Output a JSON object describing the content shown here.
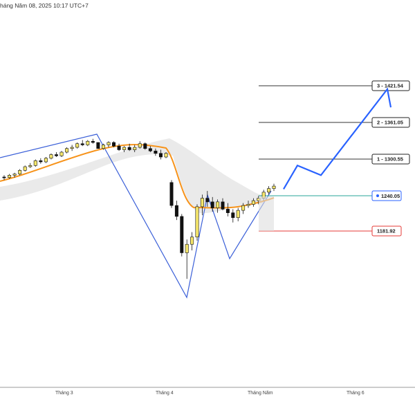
{
  "header": {
    "date_text": "háng Năm 08, 2025 10:17 UTC+7"
  },
  "colors": {
    "target_line": "#333333",
    "entry_line": "#26a69a",
    "stop_line": "#e53935",
    "zigzag": "#3a5fd8",
    "projection": "#2962ff",
    "ma": "#f7931a",
    "candle_up": "#f5e66b",
    "candle_down": "#111111",
    "band_fill": "#e6e6e6"
  },
  "chart_data": {
    "type": "candlestick",
    "x_axis": {
      "ticks": [
        "Tháng 3",
        "Tháng 4",
        "Tháng Năm",
        "Tháng 6"
      ]
    },
    "y_range": [
      1050,
      1445
    ],
    "levels": [
      {
        "label": "3 - 1421.54",
        "value": 1421.54,
        "kind": "target"
      },
      {
        "label": "2 - 1361.05",
        "value": 1361.05,
        "kind": "target"
      },
      {
        "label": "1 - 1300.55",
        "value": 1300.55,
        "kind": "target"
      },
      {
        "label": "1240.05",
        "value": 1240.05,
        "kind": "entry"
      },
      {
        "label": "1181.92",
        "value": 1181.92,
        "kind": "stop"
      }
    ],
    "candles": [
      [
        1271,
        1274,
        1266,
        1270
      ],
      [
        1270,
        1276,
        1268,
        1274
      ],
      [
        1274,
        1278,
        1270,
        1276
      ],
      [
        1276,
        1284,
        1274,
        1282
      ],
      [
        1282,
        1290,
        1280,
        1288
      ],
      [
        1288,
        1294,
        1286,
        1290
      ],
      [
        1290,
        1300,
        1288,
        1298
      ],
      [
        1298,
        1302,
        1293,
        1296
      ],
      [
        1296,
        1304,
        1294,
        1302
      ],
      [
        1302,
        1310,
        1300,
        1308
      ],
      [
        1308,
        1312,
        1304,
        1306
      ],
      [
        1306,
        1314,
        1304,
        1312
      ],
      [
        1312,
        1320,
        1310,
        1318
      ],
      [
        1318,
        1324,
        1314,
        1320
      ],
      [
        1320,
        1328,
        1318,
        1326
      ],
      [
        1326,
        1332,
        1322,
        1324
      ],
      [
        1324,
        1332,
        1322,
        1330
      ],
      [
        1330,
        1334,
        1326,
        1328
      ],
      [
        1328,
        1326,
        1318,
        1318
      ],
      [
        1318,
        1326,
        1316,
        1324
      ],
      [
        1324,
        1330,
        1320,
        1328
      ],
      [
        1328,
        1330,
        1320,
        1322
      ],
      [
        1322,
        1326,
        1314,
        1316
      ],
      [
        1316,
        1322,
        1312,
        1320
      ],
      [
        1320,
        1326,
        1314,
        1316
      ],
      [
        1316,
        1324,
        1312,
        1320
      ],
      [
        1320,
        1330,
        1318,
        1326
      ],
      [
        1326,
        1328,
        1316,
        1318
      ],
      [
        1318,
        1322,
        1312,
        1314
      ],
      [
        1314,
        1318,
        1306,
        1310
      ],
      [
        1310,
        1316,
        1300,
        1304
      ],
      [
        1304,
        1312,
        1302,
        1310
      ],
      [
        1262,
        1266,
        1220,
        1224
      ],
      [
        1224,
        1232,
        1200,
        1206
      ],
      [
        1206,
        1210,
        1140,
        1146
      ],
      [
        1146,
        1168,
        1103,
        1160
      ],
      [
        1160,
        1180,
        1150,
        1172
      ],
      [
        1172,
        1226,
        1166,
        1222
      ],
      [
        1222,
        1242,
        1208,
        1236
      ],
      [
        1236,
        1248,
        1222,
        1230
      ],
      [
        1230,
        1238,
        1214,
        1220
      ],
      [
        1220,
        1234,
        1212,
        1230
      ],
      [
        1230,
        1236,
        1216,
        1218
      ],
      [
        1218,
        1228,
        1206,
        1212
      ],
      [
        1212,
        1218,
        1196,
        1204
      ],
      [
        1204,
        1220,
        1198,
        1216
      ],
      [
        1216,
        1228,
        1210,
        1224
      ],
      [
        1224,
        1232,
        1220,
        1226
      ],
      [
        1226,
        1236,
        1222,
        1232
      ],
      [
        1232,
        1240,
        1226,
        1236
      ],
      [
        1236,
        1250,
        1232,
        1246
      ],
      [
        1246,
        1256,
        1242,
        1252
      ],
      [
        1252,
        1260,
        1248,
        1256
      ]
    ],
    "projection_path": [
      [
        1251,
        1286
      ],
      [
        1300.55,
        1300
      ],
      [
        1290,
        1286
      ],
      [
        1421.54,
        1432
      ],
      [
        1405,
        1440
      ]
    ]
  }
}
